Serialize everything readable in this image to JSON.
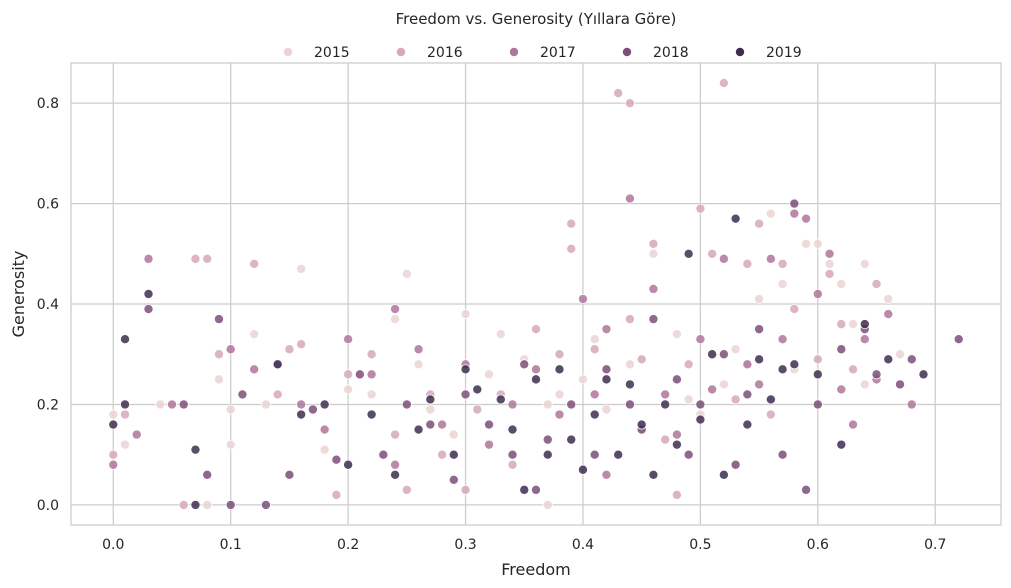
{
  "chart_data": {
    "type": "scatter",
    "title": "Freedom vs. Generosity (Yıllara Göre)",
    "xlabel": "Freedom",
    "ylabel": "Generosity",
    "xlim": [
      -0.036,
      0.756
    ],
    "ylim": [
      -0.04,
      0.88
    ],
    "xticks": [
      "0.0",
      "0.1",
      "0.2",
      "0.3",
      "0.4",
      "0.5",
      "0.6",
      "0.7"
    ],
    "yticks": [
      "0.0",
      "0.2",
      "0.4",
      "0.6",
      "0.8"
    ],
    "grid": true,
    "legend_position": "top-center",
    "series": [
      {
        "name": "2015",
        "color": "#ecd3d3",
        "points": [
          [
            0.0,
            0.18
          ],
          [
            0.01,
            0.12
          ],
          [
            0.04,
            0.2
          ],
          [
            0.08,
            0.0
          ],
          [
            0.09,
            0.25
          ],
          [
            0.1,
            0.19
          ],
          [
            0.1,
            0.12
          ],
          [
            0.12,
            0.34
          ],
          [
            0.13,
            0.2
          ],
          [
            0.16,
            0.47
          ],
          [
            0.18,
            0.11
          ],
          [
            0.2,
            0.23
          ],
          [
            0.22,
            0.22
          ],
          [
            0.24,
            0.37
          ],
          [
            0.25,
            0.46
          ],
          [
            0.26,
            0.28
          ],
          [
            0.27,
            0.19
          ],
          [
            0.29,
            0.14
          ],
          [
            0.3,
            0.38
          ],
          [
            0.32,
            0.26
          ],
          [
            0.33,
            0.34
          ],
          [
            0.35,
            0.29
          ],
          [
            0.37,
            0.2
          ],
          [
            0.37,
            0.0
          ],
          [
            0.38,
            0.22
          ],
          [
            0.4,
            0.25
          ],
          [
            0.41,
            0.33
          ],
          [
            0.42,
            0.19
          ],
          [
            0.44,
            0.28
          ],
          [
            0.45,
            0.15
          ],
          [
            0.46,
            0.5
          ],
          [
            0.48,
            0.34
          ],
          [
            0.49,
            0.21
          ],
          [
            0.5,
            0.18
          ],
          [
            0.52,
            0.24
          ],
          [
            0.53,
            0.31
          ],
          [
            0.54,
            0.28
          ],
          [
            0.55,
            0.41
          ],
          [
            0.56,
            0.58
          ],
          [
            0.57,
            0.44
          ],
          [
            0.59,
            0.52
          ],
          [
            0.6,
            0.52
          ],
          [
            0.61,
            0.48
          ],
          [
            0.62,
            0.44
          ],
          [
            0.63,
            0.36
          ],
          [
            0.64,
            0.48
          ],
          [
            0.66,
            0.41
          ],
          [
            0.67,
            0.3
          ],
          [
            0.64,
            0.24
          ],
          [
            0.58,
            0.27
          ]
        ]
      },
      {
        "name": "2016",
        "color": "#d6a8b9",
        "points": [
          [
            0.0,
            0.1
          ],
          [
            0.01,
            0.18
          ],
          [
            0.06,
            0.0
          ],
          [
            0.07,
            0.49
          ],
          [
            0.08,
            0.49
          ],
          [
            0.09,
            0.3
          ],
          [
            0.12,
            0.48
          ],
          [
            0.14,
            0.22
          ],
          [
            0.15,
            0.31
          ],
          [
            0.16,
            0.32
          ],
          [
            0.19,
            0.02
          ],
          [
            0.2,
            0.26
          ],
          [
            0.22,
            0.3
          ],
          [
            0.24,
            0.14
          ],
          [
            0.25,
            0.03
          ],
          [
            0.27,
            0.22
          ],
          [
            0.28,
            0.1
          ],
          [
            0.31,
            0.19
          ],
          [
            0.33,
            0.22
          ],
          [
            0.34,
            0.08
          ],
          [
            0.36,
            0.35
          ],
          [
            0.38,
            0.3
          ],
          [
            0.39,
            0.56
          ],
          [
            0.39,
            0.51
          ],
          [
            0.41,
            0.31
          ],
          [
            0.43,
            0.82
          ],
          [
            0.44,
            0.8
          ],
          [
            0.44,
            0.37
          ],
          [
            0.45,
            0.29
          ],
          [
            0.46,
            0.52
          ],
          [
            0.47,
            0.13
          ],
          [
            0.49,
            0.28
          ],
          [
            0.5,
            0.59
          ],
          [
            0.51,
            0.5
          ],
          [
            0.52,
            0.84
          ],
          [
            0.53,
            0.21
          ],
          [
            0.54,
            0.48
          ],
          [
            0.55,
            0.56
          ],
          [
            0.57,
            0.48
          ],
          [
            0.58,
            0.39
          ],
          [
            0.6,
            0.29
          ],
          [
            0.61,
            0.46
          ],
          [
            0.62,
            0.36
          ],
          [
            0.63,
            0.27
          ],
          [
            0.65,
            0.44
          ],
          [
            0.56,
            0.18
          ],
          [
            0.48,
            0.02
          ],
          [
            0.3,
            0.03
          ]
        ]
      },
      {
        "name": "2017",
        "color": "#ae7699",
        "points": [
          [
            0.0,
            0.08
          ],
          [
            0.02,
            0.14
          ],
          [
            0.03,
            0.49
          ],
          [
            0.05,
            0.2
          ],
          [
            0.1,
            0.31
          ],
          [
            0.12,
            0.27
          ],
          [
            0.14,
            0.28
          ],
          [
            0.16,
            0.2
          ],
          [
            0.18,
            0.15
          ],
          [
            0.2,
            0.33
          ],
          [
            0.22,
            0.26
          ],
          [
            0.24,
            0.39
          ],
          [
            0.26,
            0.31
          ],
          [
            0.28,
            0.16
          ],
          [
            0.3,
            0.28
          ],
          [
            0.32,
            0.12
          ],
          [
            0.34,
            0.2
          ],
          [
            0.36,
            0.27
          ],
          [
            0.38,
            0.18
          ],
          [
            0.4,
            0.41
          ],
          [
            0.41,
            0.22
          ],
          [
            0.42,
            0.35
          ],
          [
            0.44,
            0.61
          ],
          [
            0.46,
            0.43
          ],
          [
            0.47,
            0.22
          ],
          [
            0.48,
            0.14
          ],
          [
            0.5,
            0.33
          ],
          [
            0.51,
            0.23
          ],
          [
            0.52,
            0.49
          ],
          [
            0.54,
            0.28
          ],
          [
            0.55,
            0.24
          ],
          [
            0.56,
            0.49
          ],
          [
            0.57,
            0.33
          ],
          [
            0.58,
            0.58
          ],
          [
            0.59,
            0.57
          ],
          [
            0.6,
            0.42
          ],
          [
            0.61,
            0.5
          ],
          [
            0.62,
            0.23
          ],
          [
            0.63,
            0.16
          ],
          [
            0.64,
            0.33
          ],
          [
            0.65,
            0.25
          ],
          [
            0.66,
            0.38
          ],
          [
            0.68,
            0.2
          ],
          [
            0.42,
            0.06
          ],
          [
            0.24,
            0.08
          ]
        ]
      },
      {
        "name": "2018",
        "color": "#7e4d79",
        "points": [
          [
            0.03,
            0.39
          ],
          [
            0.06,
            0.2
          ],
          [
            0.08,
            0.06
          ],
          [
            0.09,
            0.37
          ],
          [
            0.11,
            0.22
          ],
          [
            0.13,
            0.0
          ],
          [
            0.15,
            0.06
          ],
          [
            0.17,
            0.19
          ],
          [
            0.19,
            0.09
          ],
          [
            0.21,
            0.26
          ],
          [
            0.23,
            0.1
          ],
          [
            0.25,
            0.2
          ],
          [
            0.27,
            0.16
          ],
          [
            0.29,
            0.05
          ],
          [
            0.3,
            0.22
          ],
          [
            0.32,
            0.16
          ],
          [
            0.34,
            0.1
          ],
          [
            0.35,
            0.28
          ],
          [
            0.37,
            0.13
          ],
          [
            0.39,
            0.2
          ],
          [
            0.41,
            0.1
          ],
          [
            0.42,
            0.27
          ],
          [
            0.44,
            0.2
          ],
          [
            0.45,
            0.15
          ],
          [
            0.46,
            0.37
          ],
          [
            0.48,
            0.25
          ],
          [
            0.49,
            0.1
          ],
          [
            0.5,
            0.2
          ],
          [
            0.52,
            0.3
          ],
          [
            0.53,
            0.08
          ],
          [
            0.54,
            0.22
          ],
          [
            0.55,
            0.35
          ],
          [
            0.57,
            0.1
          ],
          [
            0.58,
            0.6
          ],
          [
            0.59,
            0.03
          ],
          [
            0.6,
            0.2
          ],
          [
            0.62,
            0.31
          ],
          [
            0.64,
            0.35
          ],
          [
            0.65,
            0.26
          ],
          [
            0.67,
            0.24
          ],
          [
            0.68,
            0.29
          ],
          [
            0.72,
            0.33
          ],
          [
            0.1,
            0.0
          ],
          [
            0.36,
            0.03
          ]
        ]
      },
      {
        "name": "2019",
        "color": "#3d2e4f",
        "points": [
          [
            0.0,
            0.16
          ],
          [
            0.01,
            0.2
          ],
          [
            0.01,
            0.33
          ],
          [
            0.03,
            0.42
          ],
          [
            0.07,
            0.11
          ],
          [
            0.07,
            0.0
          ],
          [
            0.14,
            0.28
          ],
          [
            0.16,
            0.18
          ],
          [
            0.18,
            0.2
          ],
          [
            0.2,
            0.08
          ],
          [
            0.22,
            0.18
          ],
          [
            0.24,
            0.06
          ],
          [
            0.26,
            0.15
          ],
          [
            0.27,
            0.21
          ],
          [
            0.29,
            0.1
          ],
          [
            0.3,
            0.27
          ],
          [
            0.31,
            0.23
          ],
          [
            0.33,
            0.21
          ],
          [
            0.34,
            0.15
          ],
          [
            0.35,
            0.03
          ],
          [
            0.36,
            0.25
          ],
          [
            0.37,
            0.1
          ],
          [
            0.38,
            0.27
          ],
          [
            0.39,
            0.13
          ],
          [
            0.4,
            0.07
          ],
          [
            0.41,
            0.18
          ],
          [
            0.42,
            0.25
          ],
          [
            0.43,
            0.1
          ],
          [
            0.44,
            0.24
          ],
          [
            0.45,
            0.16
          ],
          [
            0.46,
            0.06
          ],
          [
            0.47,
            0.2
          ],
          [
            0.48,
            0.12
          ],
          [
            0.49,
            0.5
          ],
          [
            0.5,
            0.17
          ],
          [
            0.51,
            0.3
          ],
          [
            0.52,
            0.06
          ],
          [
            0.53,
            0.57
          ],
          [
            0.54,
            0.16
          ],
          [
            0.55,
            0.29
          ],
          [
            0.56,
            0.21
          ],
          [
            0.57,
            0.27
          ],
          [
            0.58,
            0.28
          ],
          [
            0.6,
            0.26
          ],
          [
            0.62,
            0.12
          ],
          [
            0.64,
            0.36
          ],
          [
            0.66,
            0.29
          ],
          [
            0.69,
            0.26
          ]
        ]
      }
    ]
  }
}
